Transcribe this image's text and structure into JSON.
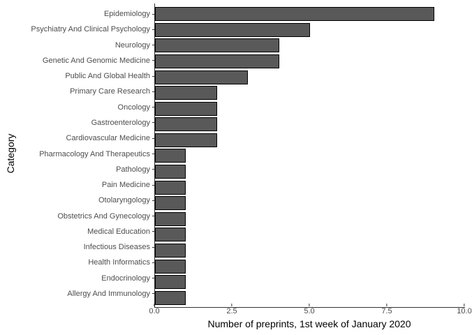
{
  "chart_data": {
    "type": "bar",
    "orientation": "horizontal",
    "title": "",
    "xlabel": "Number of preprints, 1st week of January 2020",
    "ylabel": "Category",
    "categories": [
      "Epidemiology",
      "Psychiatry And Clinical Psychology",
      "Neurology",
      "Genetic And Genomic Medicine",
      "Public And Global Health",
      "Primary Care Research",
      "Oncology",
      "Gastroenterology",
      "Cardiovascular Medicine",
      "Pharmacology And Therapeutics",
      "Pathology",
      "Pain Medicine",
      "Otolaryngology",
      "Obstetrics And Gynecology",
      "Medical Education",
      "Infectious Diseases",
      "Health Informatics",
      "Endocrinology",
      "Allergy And Immunology"
    ],
    "values": [
      9,
      5,
      4,
      4,
      3,
      2,
      2,
      2,
      2,
      1,
      1,
      1,
      1,
      1,
      1,
      1,
      1,
      1,
      1
    ],
    "xlim": [
      0,
      10
    ],
    "x_ticks": [
      {
        "value": 0,
        "label": "0.0"
      },
      {
        "value": 2.5,
        "label": "2.5"
      },
      {
        "value": 5,
        "label": "5.0"
      },
      {
        "value": 7.5,
        "label": "7.5"
      },
      {
        "value": 10,
        "label": "10.0"
      }
    ],
    "grid": false,
    "legend": "none",
    "colors": {
      "bar_fill": "#595959",
      "bar_border": "#000000",
      "axis_line": "#333333",
      "tick_text": "#4D4D4D",
      "title_text": "#000000",
      "background": "#FFFFFF"
    }
  }
}
